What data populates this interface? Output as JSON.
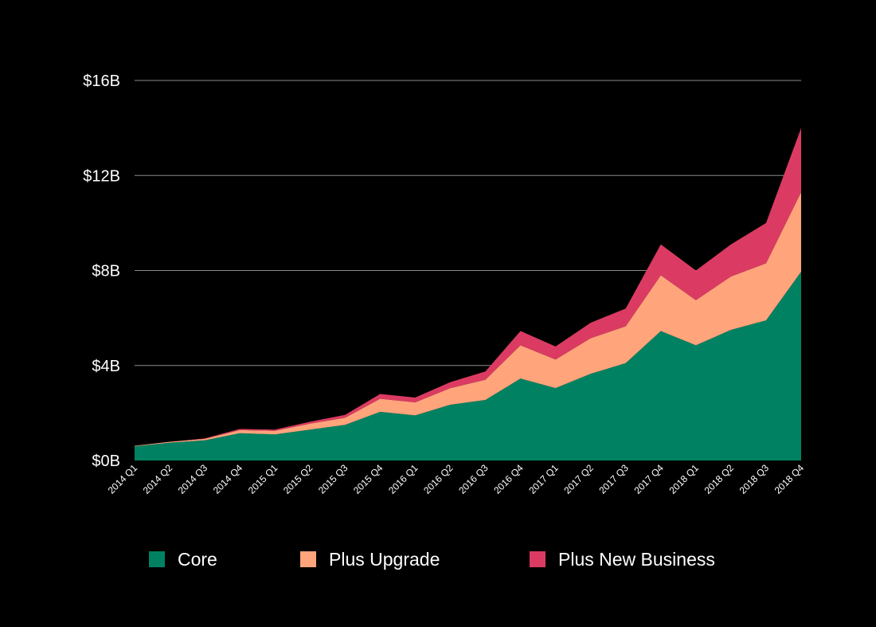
{
  "chart_data": {
    "type": "area",
    "stacked": true,
    "title": "",
    "xlabel": "",
    "ylabel": "",
    "x": [
      "2014 Q1",
      "2014 Q2",
      "2014 Q3",
      "2014 Q4",
      "2015 Q1",
      "2015 Q2",
      "2015 Q3",
      "2015 Q4",
      "2016 Q1",
      "2016 Q2",
      "2016 Q3",
      "2016 Q4",
      "2017 Q1",
      "2017 Q2",
      "2017 Q3",
      "2017 Q4",
      "2018 Q1",
      "2018 Q2",
      "2018 Q3",
      "2018 Q4"
    ],
    "ylim": [
      0,
      16
    ],
    "yticks": [
      0,
      4,
      8,
      12,
      16
    ],
    "ytick_labels": [
      "$0B",
      "$4B",
      "$8B",
      "$12B",
      "$16B"
    ],
    "grid": true,
    "legend_position": "bottom",
    "series": [
      {
        "name": "Core",
        "color": "#008262",
        "values": [
          0.6,
          0.75,
          0.85,
          1.15,
          1.1,
          1.3,
          1.5,
          2.05,
          1.9,
          2.35,
          2.55,
          3.45,
          3.05,
          3.65,
          4.1,
          5.45,
          4.85,
          5.5,
          5.9,
          7.95
        ]
      },
      {
        "name": "Plus Upgrade",
        "color": "#FFA47B",
        "values": [
          0.02,
          0.04,
          0.06,
          0.13,
          0.15,
          0.25,
          0.3,
          0.55,
          0.55,
          0.7,
          0.85,
          1.4,
          1.2,
          1.5,
          1.55,
          2.35,
          1.9,
          2.25,
          2.4,
          3.35
        ]
      },
      {
        "name": "Plus New Business",
        "color": "#DB3B62",
        "values": [
          0.0,
          0.0,
          0.02,
          0.05,
          0.05,
          0.08,
          0.12,
          0.2,
          0.2,
          0.25,
          0.35,
          0.6,
          0.55,
          0.65,
          0.75,
          1.3,
          1.25,
          1.35,
          1.7,
          2.7
        ]
      }
    ]
  }
}
